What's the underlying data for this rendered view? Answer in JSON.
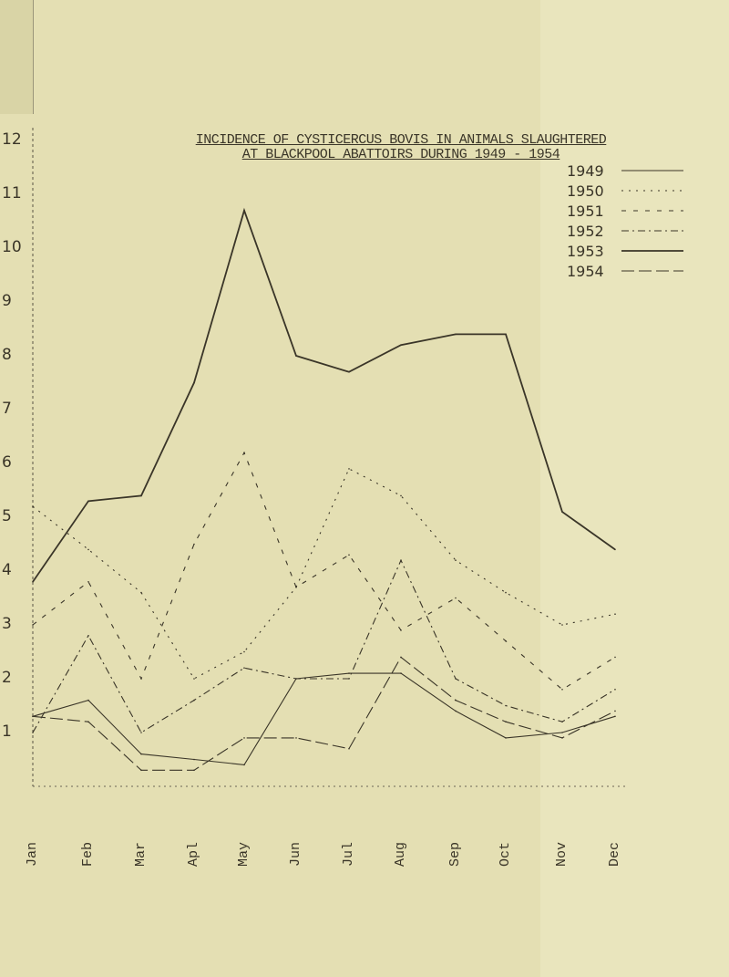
{
  "chart_data": {
    "type": "line",
    "title": "INCIDENCE OF CYSTICERCUS BOVIS IN ANIMALS SLAUGHTERED",
    "subtitle": "AT BLACKPOOL ABATTOIRS DURING 1949 - 1954",
    "xlabel": "",
    "ylabel": "",
    "categories": [
      "Jan",
      "Feb",
      "Mar",
      "Apl",
      "May",
      "Jun",
      "Jul",
      "Aug",
      "Sep",
      "Oct",
      "Nov",
      "Dec"
    ],
    "y_ticks": [
      "1",
      "2",
      "3",
      "4",
      "5",
      "6",
      "7",
      "8",
      "9",
      "10",
      "11",
      "12"
    ],
    "ylim": [
      0,
      12
    ],
    "grid": false,
    "legend_placement": "top-right",
    "series": [
      {
        "name": "1949",
        "style": "solid-thin",
        "values": [
          1.3,
          1.6,
          0.6,
          0.5,
          0.4,
          2.0,
          2.1,
          2.1,
          1.4,
          0.9,
          1.0,
          1.3
        ]
      },
      {
        "name": "1950",
        "style": "dotted",
        "values": [
          5.2,
          4.4,
          3.6,
          2.0,
          2.5,
          3.7,
          5.9,
          5.4,
          4.2,
          3.6,
          3.0,
          3.2
        ]
      },
      {
        "name": "1951",
        "style": "dashed-short",
        "values": [
          3.0,
          3.8,
          2.0,
          4.5,
          6.2,
          3.7,
          4.3,
          2.9,
          3.5,
          2.7,
          1.8,
          2.4
        ]
      },
      {
        "name": "1952",
        "style": "dash-dot",
        "values": [
          1.0,
          2.8,
          1.0,
          1.6,
          2.2,
          2.0,
          2.0,
          4.2,
          2.0,
          1.5,
          1.2,
          1.8
        ]
      },
      {
        "name": "1953",
        "style": "solid-heavy",
        "values": [
          3.8,
          5.3,
          5.4,
          7.5,
          10.7,
          8.0,
          7.7,
          8.2,
          8.4,
          8.4,
          5.1,
          4.4
        ]
      },
      {
        "name": "1954",
        "style": "long-dash",
        "values": [
          1.3,
          1.2,
          0.3,
          0.3,
          0.9,
          0.9,
          0.7,
          2.4,
          1.6,
          1.2,
          0.9,
          1.4
        ]
      }
    ],
    "colors": {
      "paper": "#e4dfb3",
      "ink": "#3a3528"
    }
  }
}
